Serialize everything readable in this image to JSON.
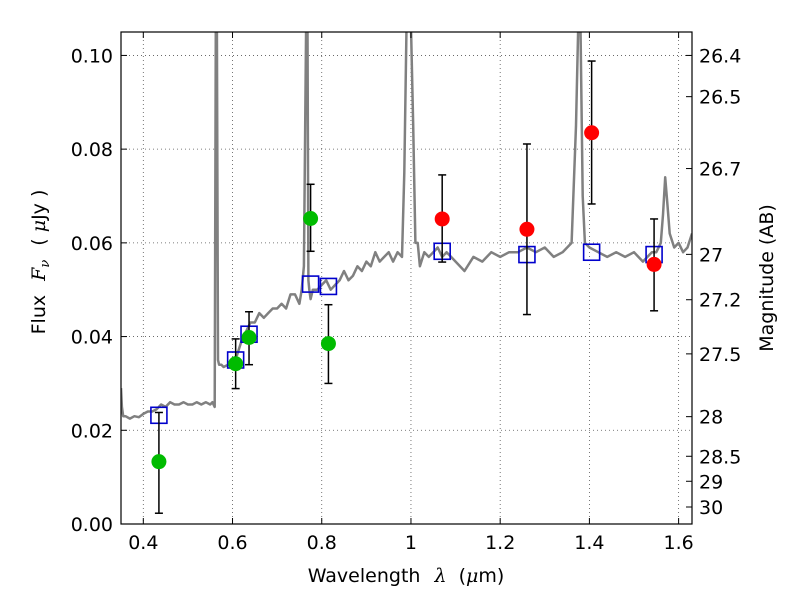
{
  "chart_data": {
    "type": "scatter",
    "xlabel": {
      "text": "Wavelength",
      "symbol": "λ",
      "unit_open": "(",
      "unit_mu": "μ",
      "unit_rest": "m)"
    },
    "ylabel": {
      "text": "Flux",
      "symbol": "F",
      "sub": "ν",
      "unit_open": "(",
      "unit_mu": "μ",
      "unit_rest": "Jy )"
    },
    "ylabel_right": "Magnitude (AB)",
    "xlim": [
      0.35,
      1.63
    ],
    "ylim": [
      0.0,
      0.105
    ],
    "grid": true,
    "x_ticks": [
      {
        "value": 0.4,
        "label": "0.4"
      },
      {
        "value": 0.6,
        "label": "0.6"
      },
      {
        "value": 0.8,
        "label": "0.8"
      },
      {
        "value": 1.0,
        "label": "1"
      },
      {
        "value": 1.2,
        "label": "1.2"
      },
      {
        "value": 1.4,
        "label": "1.4"
      },
      {
        "value": 1.6,
        "label": "1.6"
      }
    ],
    "y_ticks": [
      {
        "value": 0.0,
        "label": "0.00"
      },
      {
        "value": 0.02,
        "label": "0.02"
      },
      {
        "value": 0.04,
        "label": "0.04"
      },
      {
        "value": 0.06,
        "label": "0.06"
      },
      {
        "value": 0.08,
        "label": "0.08"
      },
      {
        "value": 0.1,
        "label": "0.10"
      }
    ],
    "mag_ticks": [
      {
        "mag": 26.4,
        "label": "26.4"
      },
      {
        "mag": 26.5,
        "label": "26.5"
      },
      {
        "mag": 26.7,
        "label": "26.7"
      },
      {
        "mag": 27.0,
        "label": "27"
      },
      {
        "mag": 27.2,
        "label": "27.2"
      },
      {
        "mag": 27.5,
        "label": "27.5"
      },
      {
        "mag": 28.0,
        "label": "28"
      },
      {
        "mag": 28.5,
        "label": "28.5"
      },
      {
        "mag": 29.0,
        "label": "29"
      },
      {
        "mag": 30.0,
        "label": "30"
      }
    ],
    "model_spectrum": {
      "color": "#808080",
      "x": [
        0.35,
        0.352,
        0.355,
        0.36,
        0.37,
        0.38,
        0.39,
        0.4,
        0.41,
        0.42,
        0.43,
        0.44,
        0.45,
        0.46,
        0.47,
        0.48,
        0.49,
        0.5,
        0.51,
        0.52,
        0.53,
        0.54,
        0.55,
        0.555,
        0.56,
        0.5625,
        0.565,
        0.5675,
        0.57,
        0.575,
        0.58,
        0.59,
        0.6,
        0.61,
        0.62,
        0.63,
        0.64,
        0.65,
        0.66,
        0.67,
        0.68,
        0.69,
        0.7,
        0.71,
        0.72,
        0.73,
        0.74,
        0.75,
        0.755,
        0.76,
        0.765,
        0.768,
        0.77,
        0.772,
        0.775,
        0.78,
        0.79,
        0.8,
        0.81,
        0.82,
        0.83,
        0.84,
        0.85,
        0.86,
        0.87,
        0.88,
        0.89,
        0.9,
        0.91,
        0.92,
        0.93,
        0.94,
        0.95,
        0.96,
        0.97,
        0.98,
        0.985,
        0.99,
        0.995,
        1.0,
        1.005,
        1.01,
        1.015,
        1.02,
        1.03,
        1.04,
        1.05,
        1.06,
        1.07,
        1.08,
        1.09,
        1.1,
        1.12,
        1.14,
        1.16,
        1.18,
        1.2,
        1.22,
        1.24,
        1.26,
        1.28,
        1.3,
        1.32,
        1.34,
        1.36,
        1.37,
        1.375,
        1.38,
        1.385,
        1.39,
        1.4,
        1.42,
        1.44,
        1.46,
        1.48,
        1.5,
        1.52,
        1.54,
        1.55,
        1.56,
        1.565,
        1.57,
        1.575,
        1.58,
        1.59,
        1.6,
        1.61,
        1.62,
        1.63
      ],
      "y": [
        0.029,
        0.025,
        0.023,
        0.023,
        0.0225,
        0.023,
        0.0228,
        0.0235,
        0.024,
        0.024,
        0.0245,
        0.0255,
        0.025,
        0.026,
        0.0255,
        0.0255,
        0.026,
        0.0255,
        0.0255,
        0.026,
        0.0255,
        0.026,
        0.0255,
        0.026,
        0.025,
        0.106,
        0.106,
        0.035,
        0.034,
        0.034,
        0.0335,
        0.034,
        0.035,
        0.036,
        0.039,
        0.041,
        0.043,
        0.043,
        0.045,
        0.044,
        0.045,
        0.046,
        0.046,
        0.047,
        0.046,
        0.049,
        0.049,
        0.047,
        0.05,
        0.055,
        0.106,
        0.106,
        0.052,
        0.05,
        0.048,
        0.05,
        0.05,
        0.051,
        0.052,
        0.05,
        0.051,
        0.052,
        0.054,
        0.052,
        0.053,
        0.055,
        0.054,
        0.056,
        0.055,
        0.058,
        0.056,
        0.057,
        0.058,
        0.056,
        0.058,
        0.057,
        0.075,
        0.106,
        0.106,
        0.106,
        0.085,
        0.06,
        0.06,
        0.055,
        0.058,
        0.057,
        0.058,
        0.059,
        0.057,
        0.058,
        0.057,
        0.056,
        0.054,
        0.057,
        0.056,
        0.058,
        0.057,
        0.058,
        0.058,
        0.059,
        0.058,
        0.059,
        0.057,
        0.058,
        0.06,
        0.085,
        0.106,
        0.106,
        0.07,
        0.06,
        0.059,
        0.058,
        0.057,
        0.058,
        0.057,
        0.058,
        0.056,
        0.058,
        0.058,
        0.06,
        0.066,
        0.074,
        0.068,
        0.062,
        0.059,
        0.06,
        0.058,
        0.059,
        0.062
      ]
    },
    "model_fluxes": {
      "color": "#0000cc",
      "x": [
        0.435,
        0.607,
        0.637,
        0.775,
        0.815,
        1.07,
        1.26,
        1.405,
        1.545
      ],
      "y": [
        0.0232,
        0.035,
        0.0405,
        0.0512,
        0.0507,
        0.0582,
        0.0575,
        0.058,
        0.0575
      ]
    },
    "observed_optical": {
      "color": "#00bb00",
      "x": [
        0.435,
        0.607,
        0.637,
        0.775,
        0.815
      ],
      "y": [
        0.0133,
        0.0342,
        0.0398,
        0.0652,
        0.0385
      ],
      "err_low": [
        0.011,
        0.0053,
        0.0058,
        0.007,
        0.0085
      ],
      "err_high": [
        0.0105,
        0.0053,
        0.0055,
        0.0073,
        0.0083
      ]
    },
    "observed_nir": {
      "color": "#ff0000",
      "x": [
        1.07,
        1.26,
        1.405,
        1.545
      ],
      "y": [
        0.0651,
        0.0629,
        0.0835,
        0.0554
      ],
      "err_low": [
        0.0092,
        0.0182,
        0.0152,
        0.0099
      ],
      "err_high": [
        0.0094,
        0.0182,
        0.0153,
        0.0097
      ]
    }
  }
}
